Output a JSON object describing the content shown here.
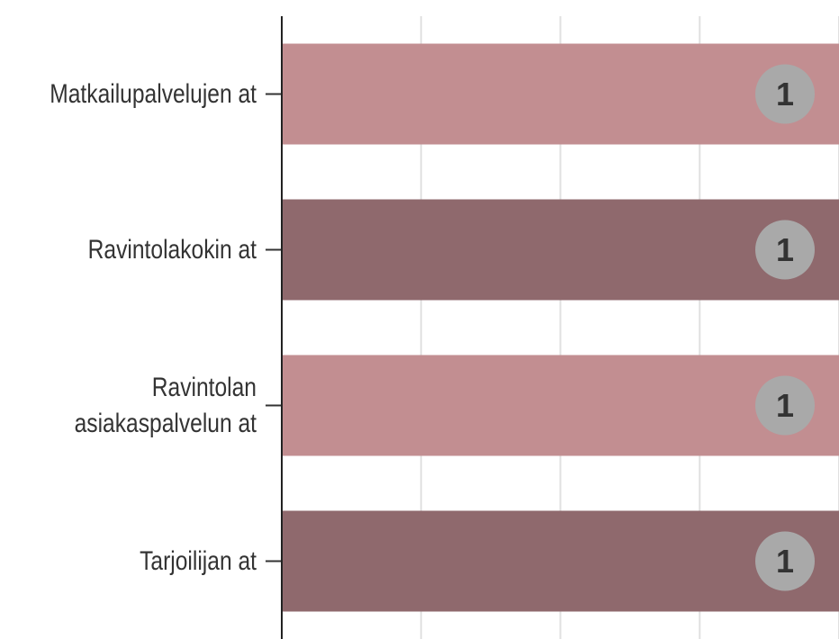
{
  "chart_data": {
    "type": "bar",
    "orientation": "horizontal",
    "categories": [
      "Matkailupalvelujen at",
      "Ravintolakokin at",
      "Ravintolan asiakaspalvelun at",
      "Tarjoilijan at"
    ],
    "values": [
      1,
      1,
      1,
      1
    ],
    "colors": [
      "#c28e91",
      "#8f696d",
      "#c28e91",
      "#8f696d"
    ],
    "xlim": [
      0,
      1
    ],
    "xticks": [
      0,
      0.25,
      0.5,
      0.75,
      1
    ],
    "grid": true
  }
}
